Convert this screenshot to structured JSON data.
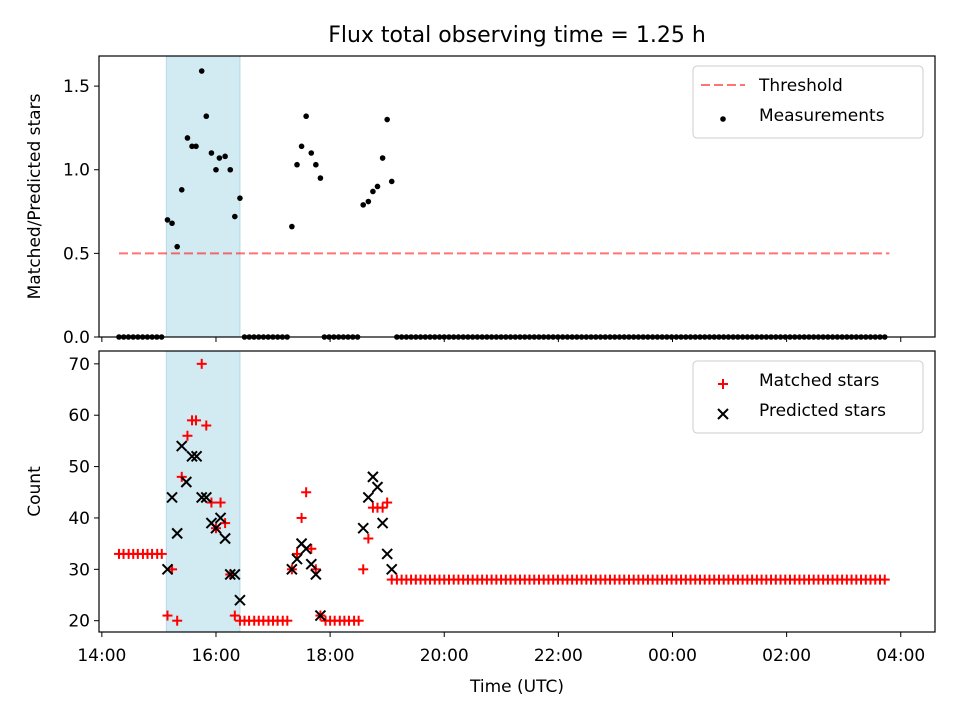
{
  "title": "Flux total observing time = 1.25 h",
  "chart_data": [
    {
      "type": "scatter",
      "panel": "top",
      "ylabel": "Matched/Predicted stars",
      "xlabel": "",
      "ylim": [
        0,
        1.68
      ],
      "yticks": [
        0.0,
        0.5,
        1.0,
        1.5
      ],
      "ytick_labels": [
        "0.0",
        "0.5",
        "1.0",
        "1.5"
      ],
      "xlim_hours": [
        13.95,
        28.6
      ],
      "highlight_span_hours": [
        15.13,
        16.42
      ],
      "highlight_color": "#add8e6",
      "threshold": {
        "name": "Threshold",
        "value": 0.5,
        "x_range_hours": [
          14.3,
          27.8
        ],
        "color": "#ff0000",
        "style": "dashed"
      },
      "legend_position": "top-right",
      "series": [
        {
          "name": "Measurements",
          "color": "#000000",
          "marker": "dot",
          "points": [
            [
              15.15,
              0.7
            ],
            [
              15.23,
              0.68
            ],
            [
              15.32,
              0.54
            ],
            [
              15.4,
              0.88
            ],
            [
              15.5,
              1.19
            ],
            [
              15.58,
              1.14
            ],
            [
              15.65,
              1.14
            ],
            [
              15.75,
              1.59
            ],
            [
              15.83,
              1.32
            ],
            [
              15.92,
              1.1
            ],
            [
              16.0,
              1.0
            ],
            [
              16.06,
              1.07
            ],
            [
              16.16,
              1.08
            ],
            [
              16.25,
              1.0
            ],
            [
              16.33,
              0.72
            ],
            [
              16.42,
              0.83
            ],
            [
              17.33,
              0.66
            ],
            [
              17.42,
              1.03
            ],
            [
              17.5,
              1.14
            ],
            [
              17.58,
              1.32
            ],
            [
              17.67,
              1.1
            ],
            [
              17.75,
              1.03
            ],
            [
              17.83,
              0.95
            ],
            [
              18.58,
              0.79
            ],
            [
              18.67,
              0.81
            ],
            [
              18.75,
              0.87
            ],
            [
              18.83,
              0.9
            ],
            [
              18.92,
              1.07
            ],
            [
              19.0,
              1.3
            ],
            [
              19.08,
              0.93
            ]
          ],
          "zeros_hours": {
            "ranges": [
              [
                14.3,
                15.05,
                0.083
              ],
              [
                16.5,
                17.25,
                0.083
              ],
              [
                17.9,
                18.5,
                0.083
              ],
              [
                19.17,
                27.8,
                0.083
              ]
            ]
          }
        }
      ]
    },
    {
      "type": "scatter",
      "panel": "bottom",
      "ylabel": "Count",
      "xlabel": "Time (UTC)",
      "ylim": [
        17.8,
        72.5
      ],
      "yticks": [
        20,
        30,
        40,
        50,
        60,
        70
      ],
      "ytick_labels": [
        "20",
        "30",
        "40",
        "50",
        "60",
        "70"
      ],
      "xlim_hours": [
        13.95,
        28.6
      ],
      "xticks_hours": [
        14,
        16,
        18,
        20,
        22,
        24,
        26,
        28
      ],
      "xtick_labels": [
        "14:00",
        "16:00",
        "18:00",
        "20:00",
        "22:00",
        "00:00",
        "02:00",
        "04:00"
      ],
      "highlight_span_hours": [
        15.13,
        16.42
      ],
      "highlight_color": "#add8e6",
      "legend_position": "top-right",
      "series": [
        {
          "name": "Matched stars",
          "color": "#ff0000",
          "marker": "plus",
          "points": [
            [
              14.3,
              33
            ],
            [
              14.38,
              33
            ],
            [
              14.47,
              33
            ],
            [
              14.55,
              33
            ],
            [
              14.63,
              33
            ],
            [
              14.72,
              33
            ],
            [
              14.8,
              33
            ],
            [
              14.88,
              33
            ],
            [
              14.97,
              33
            ],
            [
              15.05,
              33
            ],
            [
              15.15,
              21
            ],
            [
              15.23,
              30
            ],
            [
              15.32,
              20
            ],
            [
              15.4,
              48
            ],
            [
              15.5,
              56
            ],
            [
              15.58,
              59
            ],
            [
              15.65,
              59
            ],
            [
              15.75,
              70
            ],
            [
              15.83,
              58
            ],
            [
              15.92,
              43
            ],
            [
              16.0,
              38
            ],
            [
              16.08,
              43
            ],
            [
              16.16,
              39
            ],
            [
              16.25,
              29
            ],
            [
              16.33,
              21
            ],
            [
              16.42,
              20
            ],
            [
              16.5,
              20
            ],
            [
              16.58,
              20
            ],
            [
              16.67,
              20
            ],
            [
              16.75,
              20
            ],
            [
              16.83,
              20
            ],
            [
              16.92,
              20
            ],
            [
              17.0,
              20
            ],
            [
              17.08,
              20
            ],
            [
              17.17,
              20
            ],
            [
              17.25,
              20
            ],
            [
              17.33,
              30
            ],
            [
              17.42,
              33
            ],
            [
              17.5,
              40
            ],
            [
              17.58,
              45
            ],
            [
              17.67,
              34
            ],
            [
              17.75,
              30
            ],
            [
              17.83,
              21
            ],
            [
              17.92,
              20
            ],
            [
              18.0,
              20
            ],
            [
              18.08,
              20
            ],
            [
              18.17,
              20
            ],
            [
              18.25,
              20
            ],
            [
              18.33,
              20
            ],
            [
              18.42,
              20
            ],
            [
              18.5,
              20
            ],
            [
              18.58,
              30
            ],
            [
              18.67,
              36
            ],
            [
              18.75,
              42
            ],
            [
              18.83,
              42
            ],
            [
              18.92,
              42
            ],
            [
              19.0,
              43
            ],
            [
              19.08,
              28
            ]
          ],
          "constant_run": {
            "from_hours": 19.17,
            "to_hours": 27.8,
            "step_hours": 0.083,
            "value": 28
          }
        },
        {
          "name": "Predicted stars",
          "color": "#000000",
          "marker": "x",
          "points": [
            [
              15.15,
              30
            ],
            [
              15.23,
              44
            ],
            [
              15.32,
              37
            ],
            [
              15.4,
              54
            ],
            [
              15.48,
              47
            ],
            [
              15.58,
              52
            ],
            [
              15.66,
              52
            ],
            [
              15.75,
              44
            ],
            [
              15.83,
              44
            ],
            [
              15.92,
              39
            ],
            [
              16.0,
              38
            ],
            [
              16.08,
              40
            ],
            [
              16.16,
              36
            ],
            [
              16.25,
              29
            ],
            [
              16.33,
              29
            ],
            [
              16.42,
              24
            ],
            [
              17.33,
              30
            ],
            [
              17.42,
              32
            ],
            [
              17.5,
              35
            ],
            [
              17.58,
              34
            ],
            [
              17.67,
              31
            ],
            [
              17.75,
              29
            ],
            [
              17.83,
              21
            ],
            [
              18.58,
              38
            ],
            [
              18.67,
              44
            ],
            [
              18.75,
              48
            ],
            [
              18.83,
              46
            ],
            [
              18.92,
              39
            ],
            [
              19.0,
              33
            ],
            [
              19.08,
              30
            ]
          ]
        }
      ]
    }
  ]
}
